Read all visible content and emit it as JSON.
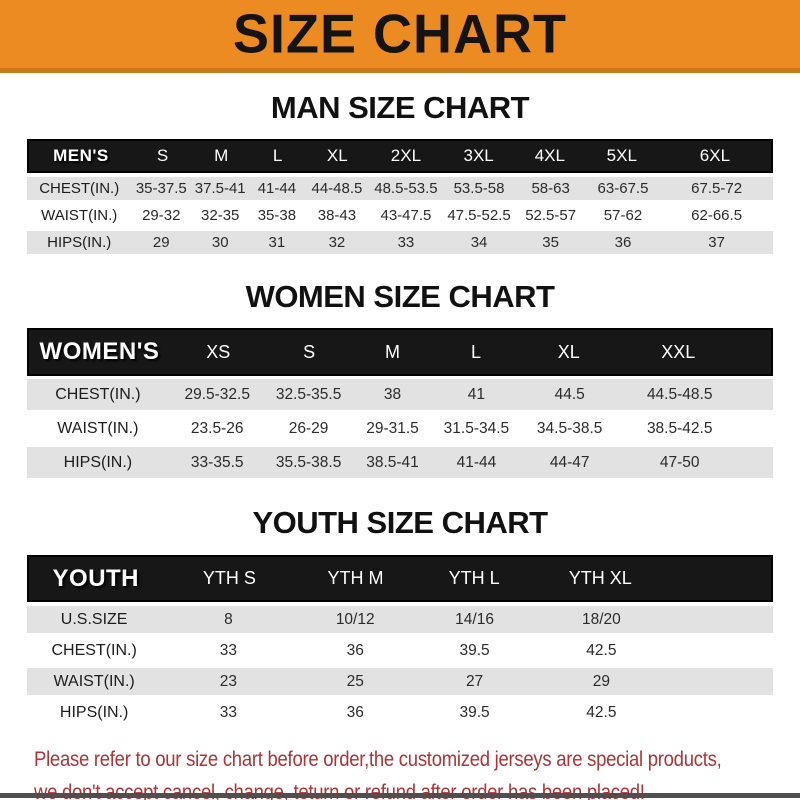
{
  "banner": {
    "title": "SIZE CHART"
  },
  "colors": {
    "banner_bg": "#ED8B23",
    "banner_border": "#C9781A",
    "table_header_bg": "#171717",
    "row_alt_bg": "#E2E2E2",
    "footer_text": "#AE3335"
  },
  "men": {
    "title": "MAN SIZE CHART",
    "header": [
      "MEN'S",
      "S",
      "M",
      "L",
      "XL",
      "2XL",
      "3XL",
      "4XL",
      "5XL",
      "6XL"
    ],
    "rows": [
      [
        "CHEST(IN.)",
        "35-37.5",
        "37.5-41",
        "41-44",
        "44-48.5",
        "48.5-53.5",
        "53.5-58",
        "58-63",
        "63-67.5",
        "67.5-72"
      ],
      [
        "WAIST(IN.)",
        "29-32",
        "32-35",
        "35-38",
        "38-43",
        "43-47.5",
        "47.5-52.5",
        "52.5-57",
        "57-62",
        "62-66.5"
      ],
      [
        "HIPS(IN.)",
        "29",
        "30",
        "31",
        "32",
        "33",
        "34",
        "35",
        "36",
        "37"
      ]
    ]
  },
  "women": {
    "title": "WOMEN SIZE CHART",
    "header": [
      "WOMEN'S",
      "XS",
      "S",
      "M",
      "L",
      "XL",
      "XXL"
    ],
    "rows": [
      [
        "CHEST(IN.)",
        "29.5-32.5",
        "32.5-35.5",
        "38",
        "41",
        "44.5",
        "44.5-48.5"
      ],
      [
        "WAIST(IN.)",
        "23.5-26",
        "26-29",
        "29-31.5",
        "31.5-34.5",
        "34.5-38.5",
        "38.5-42.5"
      ],
      [
        "HIPS(IN.)",
        "33-35.5",
        "35.5-38.5",
        "38.5-41",
        "41-44",
        "44-47",
        "47-50"
      ]
    ]
  },
  "youth": {
    "title": "YOUTH SIZE CHART",
    "header": [
      "YOUTH",
      "YTH S",
      "YTH M",
      "YTH L",
      "YTH XL"
    ],
    "rows": [
      [
        "U.S.SIZE",
        "8",
        "10/12",
        "14/16",
        "18/20"
      ],
      [
        "CHEST(IN.)",
        "33",
        "36",
        "39.5",
        "42.5"
      ],
      [
        "WAIST(IN.)",
        "23",
        "25",
        "27",
        "29"
      ],
      [
        "HIPS(IN.)",
        "33",
        "36",
        "39.5",
        "42.5"
      ]
    ]
  },
  "footer": {
    "line1": "Please refer to our size chart before order,the customized jerseys are special products,",
    "line2": "we don't accept cancel, change, teturn or refund after order has been placed!"
  }
}
